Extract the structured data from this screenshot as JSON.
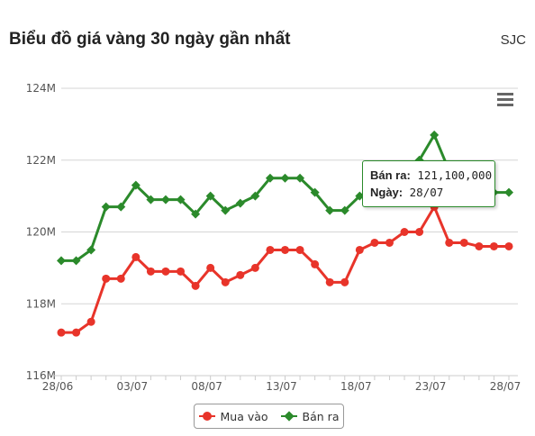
{
  "header": {
    "title": "Biểu đồ giá vàng 30 ngày gần nhất",
    "brand": "SJC"
  },
  "menu": {
    "icon": "hamburger-menu-icon"
  },
  "tooltip": {
    "line1_label": "Bán ra:",
    "line1_value": "121,100,000",
    "line2_label": "Ngày:",
    "line2_value": "28/07"
  },
  "chart_data": {
    "type": "line",
    "title": "Biểu đồ giá vàng 30 ngày gần nhất",
    "xlabel": "",
    "ylabel": "",
    "ylim": [
      116,
      124
    ],
    "yticks": [
      "116M",
      "118M",
      "120M",
      "122M",
      "124M"
    ],
    "ytick_values": [
      116,
      118,
      120,
      122,
      124
    ],
    "x": [
      "28/06",
      "29/06",
      "30/06",
      "01/07",
      "02/07",
      "03/07",
      "04/07",
      "05/07",
      "06/07",
      "07/07",
      "08/07",
      "09/07",
      "10/07",
      "11/07",
      "12/07",
      "13/07",
      "14/07",
      "15/07",
      "16/07",
      "17/07",
      "18/07",
      "19/07",
      "20/07",
      "21/07",
      "22/07",
      "23/07",
      "24/07",
      "25/07",
      "26/07",
      "27/07",
      "28/07"
    ],
    "xtick_labels": [
      "28/06",
      "03/07",
      "08/07",
      "13/07",
      "18/07",
      "23/07",
      "28/07"
    ],
    "grid": true,
    "legend_position": "bottom-center",
    "colors": {
      "mua_vao": "#e8342a",
      "ban_ra": "#2b8a2b"
    },
    "series": [
      {
        "name": "Mua vào",
        "values": [
          117.2,
          117.2,
          117.5,
          118.7,
          118.7,
          119.3,
          118.9,
          118.9,
          118.9,
          118.5,
          119.0,
          118.6,
          118.8,
          119.0,
          119.5,
          119.5,
          119.5,
          119.1,
          118.6,
          118.6,
          119.5,
          119.7,
          119.7,
          120.0,
          120.0,
          120.7,
          119.7,
          119.7,
          119.6,
          119.6,
          119.6
        ]
      },
      {
        "name": "Bán ra",
        "values": [
          119.2,
          119.2,
          119.5,
          120.7,
          120.7,
          121.3,
          120.9,
          120.9,
          120.9,
          120.5,
          121.0,
          120.6,
          120.8,
          121.0,
          121.5,
          121.5,
          121.5,
          121.1,
          120.6,
          120.6,
          121.0,
          121.2,
          121.2,
          121.7,
          122.0,
          122.7,
          121.7,
          121.7,
          121.1,
          121.1,
          121.1
        ]
      }
    ]
  }
}
